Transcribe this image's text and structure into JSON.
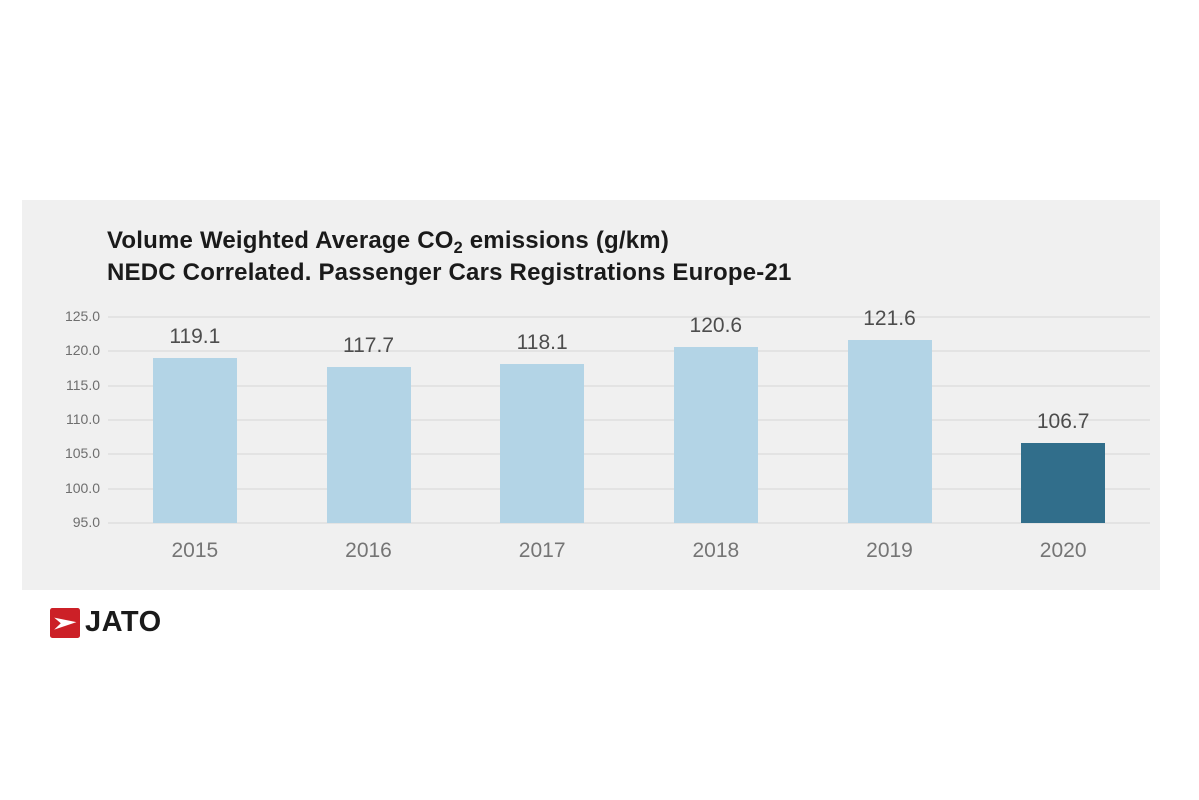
{
  "chart": {
    "title_line1_pre": "Volume Weighted Average CO",
    "title_sub": "2",
    "title_line1_post": " emissions (g/km)",
    "title_line2": "NEDC Correlated. Passenger Cars Registrations Europe-21"
  },
  "chart_data": {
    "type": "bar",
    "title": "Volume Weighted Average CO2 emissions (g/km) NEDC Correlated. Passenger Cars Registrations Europe-21",
    "categories": [
      "2015",
      "2016",
      "2017",
      "2018",
      "2019",
      "2020"
    ],
    "values": [
      119.1,
      117.7,
      118.1,
      120.6,
      121.6,
      106.7
    ],
    "value_labels": [
      "119.1",
      "117.7",
      "118.1",
      "120.6",
      "121.6",
      "106.7"
    ],
    "xlabel": "",
    "ylabel": "",
    "ylim": [
      95,
      125
    ],
    "yticks": [
      125.0,
      120.0,
      115.0,
      110.0,
      105.0,
      100.0,
      95.0
    ],
    "ytick_labels": [
      "125.0",
      "120.0",
      "115.0",
      "110.0",
      "105.0",
      "100.0",
      "95.0"
    ],
    "grid": true,
    "legend": false,
    "bar_colors": [
      "#b3d4e6",
      "#b3d4e6",
      "#b3d4e6",
      "#b3d4e6",
      "#b3d4e6",
      "#316e8b"
    ],
    "colors": {
      "bar_light": "#b3d4e6",
      "bar_dark": "#316e8b",
      "panel_bg": "#f0f0f0",
      "gridline": "#e3e3e3",
      "value_label": "#4d4d4d",
      "tick_label": "#6e6e6e",
      "axis_label": "#757575",
      "title": "#1a1a1a"
    }
  },
  "footer": {
    "logo_text": "JATO",
    "logo_red": "#cc2027"
  }
}
